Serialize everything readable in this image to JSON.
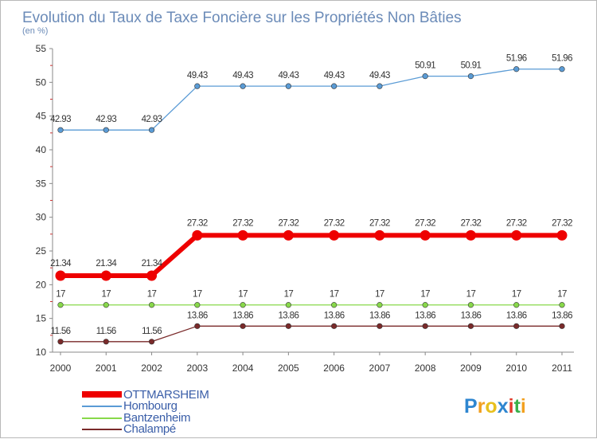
{
  "chart_data": {
    "type": "line",
    "title": "Evolution du Taux de Taxe Foncière sur les Propriétés Non Bâties",
    "subtitle": "(en %)",
    "x": [
      "2000",
      "2001",
      "2002",
      "2003",
      "2004",
      "2005",
      "2006",
      "2007",
      "2008",
      "2009",
      "2010",
      "2011"
    ],
    "yticks": [
      "10",
      "15",
      "20",
      "25",
      "30",
      "35",
      "40",
      "45",
      "50",
      "55"
    ],
    "ylim": [
      10,
      55
    ],
    "grid": false,
    "legend_position": "bottom-left",
    "series": [
      {
        "name": "Hombourg",
        "color": "#5a9bd5",
        "values": [
          42.93,
          42.93,
          42.93,
          49.43,
          49.43,
          49.43,
          49.43,
          49.43,
          50.91,
          50.91,
          51.96,
          51.96
        ],
        "labels": [
          "42.93",
          "42.93",
          "42.93",
          "49.43",
          "49.43",
          "49.43",
          "49.43",
          "49.43",
          "50.91",
          "50.91",
          "51.96",
          "51.96"
        ]
      },
      {
        "name": "Bantzenheim",
        "color": "#88d84a",
        "values": [
          17,
          17,
          17,
          17,
          17,
          17,
          17,
          17,
          17,
          17,
          17,
          17
        ],
        "labels": [
          "17",
          "17",
          "17",
          "17",
          "17",
          "17",
          "17",
          "17",
          "17",
          "17",
          "17",
          "17"
        ]
      },
      {
        "name": "Chalampé",
        "color": "#7a2a2a",
        "values": [
          11.56,
          11.56,
          11.56,
          13.86,
          13.86,
          13.86,
          13.86,
          13.86,
          13.86,
          13.86,
          13.86,
          13.86
        ],
        "labels": [
          "11.56",
          "11.56",
          "11.56",
          "13.86",
          "13.86",
          "13.86",
          "13.86",
          "13.86",
          "13.86",
          "13.86",
          "13.86",
          "13.86"
        ]
      },
      {
        "name": "OTTMARSHEIM",
        "color": "#ee0000",
        "values": [
          21.34,
          21.34,
          21.34,
          27.32,
          27.32,
          27.32,
          27.32,
          27.32,
          27.32,
          27.32,
          27.32,
          27.32
        ],
        "labels": [
          "21.34",
          "21.34",
          "21.34",
          "27.32",
          "27.32",
          "27.32",
          "27.32",
          "27.32",
          "27.32",
          "27.32",
          "27.32",
          "27.32"
        ]
      }
    ],
    "legend": [
      "OTTMARSHEIM",
      "Hombourg",
      "Bantzenheim",
      "Chalampé"
    ]
  },
  "brand": {
    "name": "Proxiti"
  }
}
